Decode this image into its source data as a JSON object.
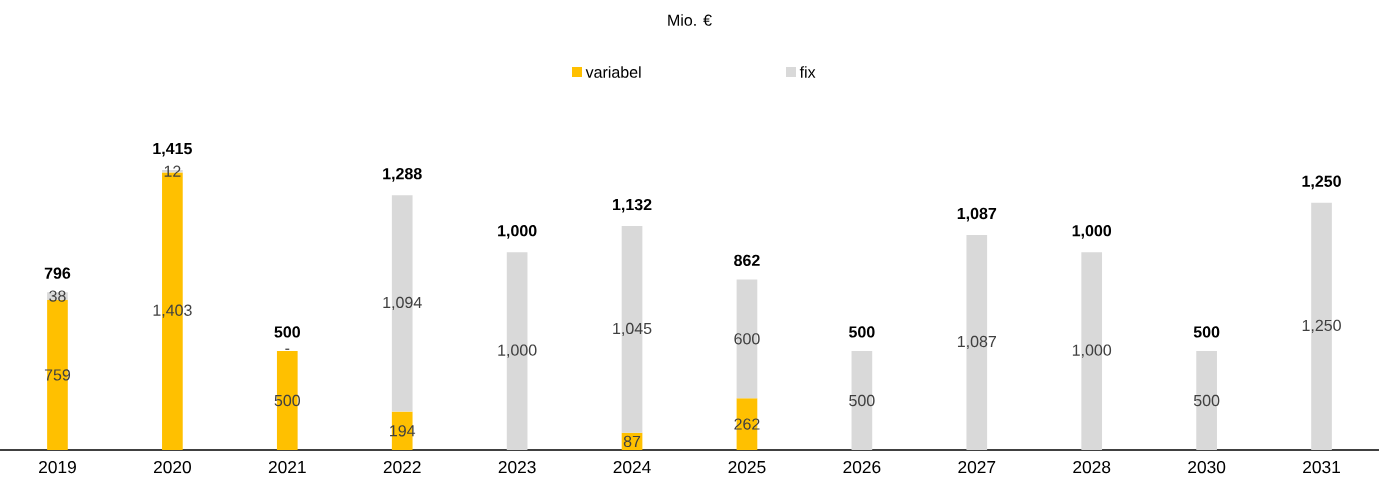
{
  "chart_data": {
    "type": "bar",
    "stacked": true,
    "title": "Mio. €",
    "legend": "top",
    "categories": [
      "2019",
      "2020",
      "2021",
      "2022",
      "2023",
      "2024",
      "2025",
      "2026",
      "2027",
      "2028",
      "2030",
      "2031"
    ],
    "series": [
      {
        "name": "variabel",
        "color": "#ffc000",
        "values": [
          759,
          1403,
          500,
          194,
          null,
          87,
          262,
          null,
          null,
          null,
          null,
          null
        ],
        "value_labels": [
          "759",
          "1,403",
          "500",
          "194",
          null,
          "87",
          "262",
          null,
          null,
          null,
          null,
          null
        ]
      },
      {
        "name": "fix",
        "color": "#d9d9d9",
        "values": [
          38,
          12,
          0,
          1094,
          1000,
          1045,
          600,
          500,
          1087,
          1000,
          500,
          1250
        ],
        "value_labels": [
          "38",
          "12",
          "-",
          "1,094",
          "1,000",
          "1,045",
          "600",
          "500",
          "1,087",
          "1,000",
          "500",
          "1,250"
        ]
      }
    ],
    "totals": [
      "796",
      "1,415",
      "500",
      "1,288",
      "1,000",
      "1,132",
      "862",
      "500",
      "1,087",
      "1,000",
      "500",
      "1,250"
    ]
  }
}
